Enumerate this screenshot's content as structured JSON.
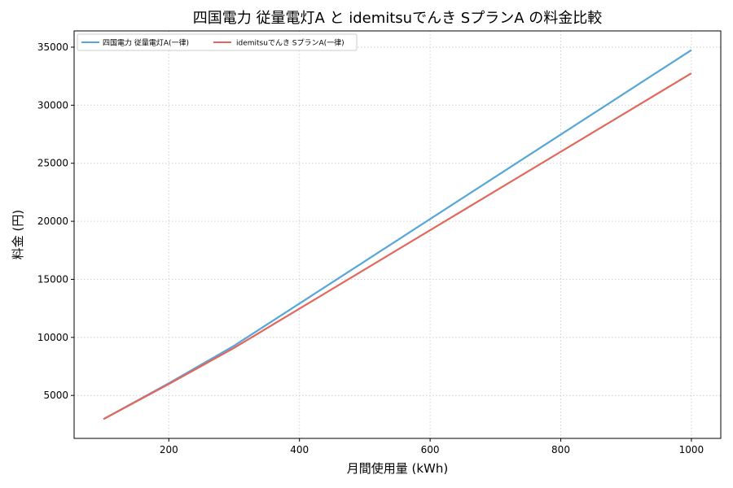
{
  "chart_data": {
    "type": "line",
    "title": "四国電力 従量電灯A と idemitsuでんき SプランA の料金比較",
    "xlabel": "月間使用量 (kWh)",
    "ylabel": "料金 (円)",
    "xlim": [
      55,
      1045
    ],
    "ylim": [
      1300,
      36400
    ],
    "xticks": [
      200,
      400,
      600,
      800,
      1000
    ],
    "yticks": [
      5000,
      10000,
      15000,
      20000,
      25000,
      30000,
      35000
    ],
    "grid": true,
    "legend_position": "top-left",
    "series": [
      {
        "name": "四国電力 従量電灯A(一律)",
        "color": "#56a6d8",
        "x": [
          100,
          200,
          300,
          1000
        ],
        "values": [
          2960,
          6050,
          9280,
          34750
        ]
      },
      {
        "name": "idemitsuでんき SプランA(一律)",
        "color": "#e2665a",
        "x": [
          100,
          200,
          300,
          1000
        ],
        "values": [
          2960,
          5990,
          9100,
          32750
        ]
      }
    ]
  }
}
